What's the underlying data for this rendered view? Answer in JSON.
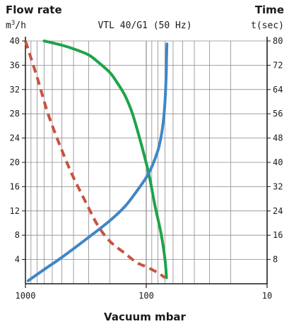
{
  "chart_data": {
    "type": "line",
    "title": "VTL 40/G1 (50 Hz)",
    "left_axis": {
      "label_line1": "Flow rate",
      "label_line2_base": "m",
      "label_line2_sup": "3",
      "label_line2_tail": "/h",
      "ylim": [
        0,
        40
      ],
      "ticks": [
        4,
        8,
        12,
        16,
        20,
        24,
        28,
        32,
        36,
        40
      ]
    },
    "right_axis": {
      "label_line1": "Time",
      "label_line2": "t(sec)",
      "ylim": [
        0,
        80
      ],
      "ticks": [
        8,
        16,
        24,
        32,
        40,
        48,
        56,
        64,
        72,
        80
      ]
    },
    "x_axis": {
      "label": "Vacuum mbar",
      "scale": "log",
      "reversed": true,
      "xlim": [
        1000,
        10
      ],
      "tick_labels": [
        "1000",
        "100",
        "10"
      ],
      "ticks": [
        1000,
        100,
        10
      ]
    },
    "grid": true,
    "series": [
      {
        "axis": "left",
        "color": "#1fa34a",
        "style": "solid",
        "points": [
          [
            700,
            40
          ],
          [
            500,
            39.3
          ],
          [
            400,
            38.7
          ],
          [
            300,
            37.7
          ],
          [
            250,
            36.5
          ],
          [
            200,
            34.8
          ],
          [
            175,
            33.2
          ],
          [
            150,
            31
          ],
          [
            130,
            28
          ],
          [
            110,
            23
          ],
          [
            95,
            18
          ],
          [
            85,
            13
          ],
          [
            75,
            8
          ],
          [
            70,
            4
          ],
          [
            68,
            1
          ]
        ]
      },
      {
        "axis": "right",
        "color": "#3f86c6",
        "style": "solid",
        "points": [
          [
            950,
            1
          ],
          [
            700,
            4.7
          ],
          [
            500,
            8.7
          ],
          [
            300,
            15.3
          ],
          [
            200,
            20.8
          ],
          [
            150,
            25.5
          ],
          [
            120,
            30.5
          ],
          [
            100,
            35
          ],
          [
            90,
            38.5
          ],
          [
            80,
            44
          ],
          [
            75,
            49
          ],
          [
            72,
            54
          ],
          [
            70,
            60
          ],
          [
            68.5,
            68
          ],
          [
            68,
            74
          ],
          [
            67.5,
            79
          ]
        ]
      },
      {
        "axis": "left",
        "color": "#c75441",
        "style": "dashed",
        "points": [
          [
            1000,
            40
          ],
          [
            800,
            34
          ],
          [
            650,
            28
          ],
          [
            500,
            22
          ],
          [
            400,
            17.5
          ],
          [
            300,
            12.5
          ],
          [
            250,
            9.5
          ],
          [
            200,
            7
          ],
          [
            150,
            5
          ],
          [
            120,
            3.5
          ],
          [
            100,
            2.8
          ],
          [
            80,
            1.8
          ],
          [
            70,
            1
          ]
        ]
      }
    ]
  }
}
